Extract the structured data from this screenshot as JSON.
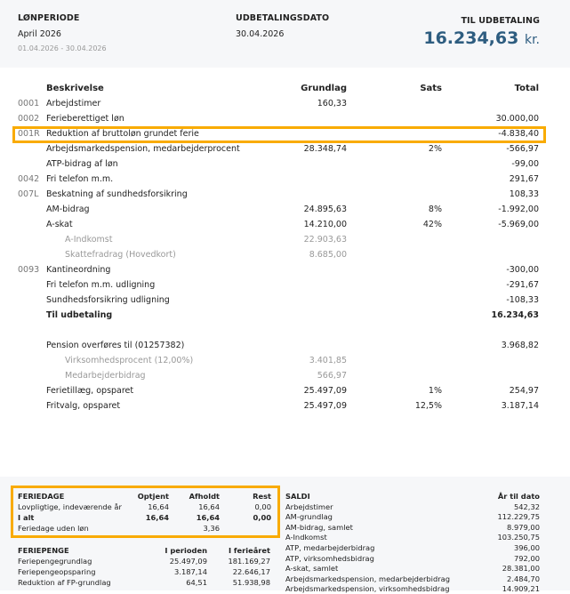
{
  "header": {
    "period_label": "LØNPERIODE",
    "period_value": "April 2026",
    "period_range": "01.04.2026 - 30.04.2026",
    "date_label": "UDBETALINGSDATO",
    "date_value": "30.04.2026",
    "pay_label": "TIL UDBETALING",
    "pay_value": "16.234,63",
    "pay_unit": "kr."
  },
  "table": {
    "columns": [
      "Beskrivelse",
      "Grundlag",
      "Sats",
      "Total"
    ],
    "rows": [
      {
        "code": "0001",
        "desc": "Arbejdstimer",
        "grundlag": "160,33",
        "sats": "",
        "total": ""
      },
      {
        "code": "0002",
        "desc": "Ferieberettiget løn",
        "grundlag": "",
        "sats": "",
        "total": "30.000,00"
      },
      {
        "code": "001R",
        "desc": "Reduktion af bruttoløn grundet ferie",
        "grundlag": "",
        "sats": "",
        "total": "-4.838,40",
        "highlight": true
      },
      {
        "code": "",
        "desc": "Arbejdsmarkedspension, medarbejderprocent",
        "grundlag": "28.348,74",
        "sats": "2%",
        "total": "-566,97"
      },
      {
        "code": "",
        "desc": "ATP-bidrag af løn",
        "grundlag": "",
        "sats": "",
        "total": "-99,00"
      },
      {
        "code": "0042",
        "desc": "Fri telefon m.m.",
        "grundlag": "",
        "sats": "",
        "total": "291,67"
      },
      {
        "code": "007L",
        "desc": "Beskatning af sundhedsforsikring",
        "grundlag": "",
        "sats": "",
        "total": "108,33"
      },
      {
        "code": "",
        "desc": "AM-bidrag",
        "grundlag": "24.895,63",
        "sats": "8%",
        "total": "-1.992,00"
      },
      {
        "code": "",
        "desc": "A-skat",
        "grundlag": "14.210,00",
        "sats": "42%",
        "total": "-5.969,00"
      },
      {
        "code": "",
        "desc": "A-Indkomst",
        "grundlag": "22.903,63",
        "sats": "",
        "total": "",
        "sub": true
      },
      {
        "code": "",
        "desc": "Skattefradrag (Hovedkort)",
        "grundlag": "8.685,00",
        "sats": "",
        "total": "",
        "sub": true
      },
      {
        "code": "0093",
        "desc": "Kantineordning",
        "grundlag": "",
        "sats": "",
        "total": "-300,00"
      },
      {
        "code": "",
        "desc": "Fri telefon m.m. udligning",
        "grundlag": "",
        "sats": "",
        "total": "-291,67"
      },
      {
        "code": "",
        "desc": "Sundhedsforsikring udligning",
        "grundlag": "",
        "sats": "",
        "total": "-108,33"
      },
      {
        "code": "",
        "desc": "Til udbetaling",
        "grundlag": "",
        "sats": "",
        "total": "16.234,63",
        "bold": true
      },
      {
        "code": "",
        "desc": "",
        "grundlag": "",
        "sats": "",
        "total": ""
      },
      {
        "code": "",
        "desc": "Pension overføres til (01257382)",
        "grundlag": "",
        "sats": "",
        "total": "3.968,82"
      },
      {
        "code": "",
        "desc": "Virksomhedsprocent (12,00%)",
        "grundlag": "3.401,85",
        "sats": "",
        "total": "",
        "sub": true
      },
      {
        "code": "",
        "desc": "Medarbejderbidrag",
        "grundlag": "566,97",
        "sats": "",
        "total": "",
        "sub": true
      },
      {
        "code": "",
        "desc": "Ferietillæg, opsparet",
        "grundlag": "25.497,09",
        "sats": "1%",
        "total": "254,97"
      },
      {
        "code": "",
        "desc": "Fritvalg, opsparet",
        "grundlag": "25.497,09",
        "sats": "12,5%",
        "total": "3.187,14"
      }
    ]
  },
  "feriedage": {
    "columns": [
      "FERIEDAGE",
      "Optjent",
      "Afholdt",
      "Rest"
    ],
    "rows": [
      [
        "Lovpligtige, indeværende år",
        "16,64",
        "16,64",
        "0,00"
      ],
      [
        "I alt",
        "16,64",
        "16,64",
        "0,00"
      ],
      [
        "Feriedage uden løn",
        "",
        "3,36",
        ""
      ]
    ]
  },
  "feriepenge": {
    "columns": [
      "FERIEPENGE",
      "I perioden",
      "I ferieåret"
    ],
    "rows": [
      [
        "Feriepengegrundlag",
        "25.497,09",
        "181.169,27"
      ],
      [
        "Feriepengeopsparing",
        "3.187,14",
        "22.646,17"
      ],
      [
        "Reduktion af FP-grundlag",
        "64,51",
        "51.938,98"
      ]
    ]
  },
  "saldi": {
    "columns": [
      "SALDI",
      "År til dato"
    ],
    "rows": [
      [
        "Arbejdstimer",
        "542,32"
      ],
      [
        "AM-grundlag",
        "112.229,75"
      ],
      [
        "AM-bidrag, samlet",
        "8.979,00"
      ],
      [
        "A-Indkomst",
        "103.250,75"
      ],
      [
        "ATP, medarbejderbidrag",
        "396,00"
      ],
      [
        "ATP, virksomhedsbidrag",
        "792,00"
      ],
      [
        "A-skat, samlet",
        "28.381,00"
      ],
      [
        "Arbejdsmarkedspension, medarbejderbidrag",
        "2.484,70"
      ],
      [
        "Arbejdsmarkedspension, virksomhedsbidrag",
        "14.909,21"
      ]
    ]
  },
  "colors": {
    "accent": "#2e5d80",
    "highlight": "#f9ab00"
  }
}
